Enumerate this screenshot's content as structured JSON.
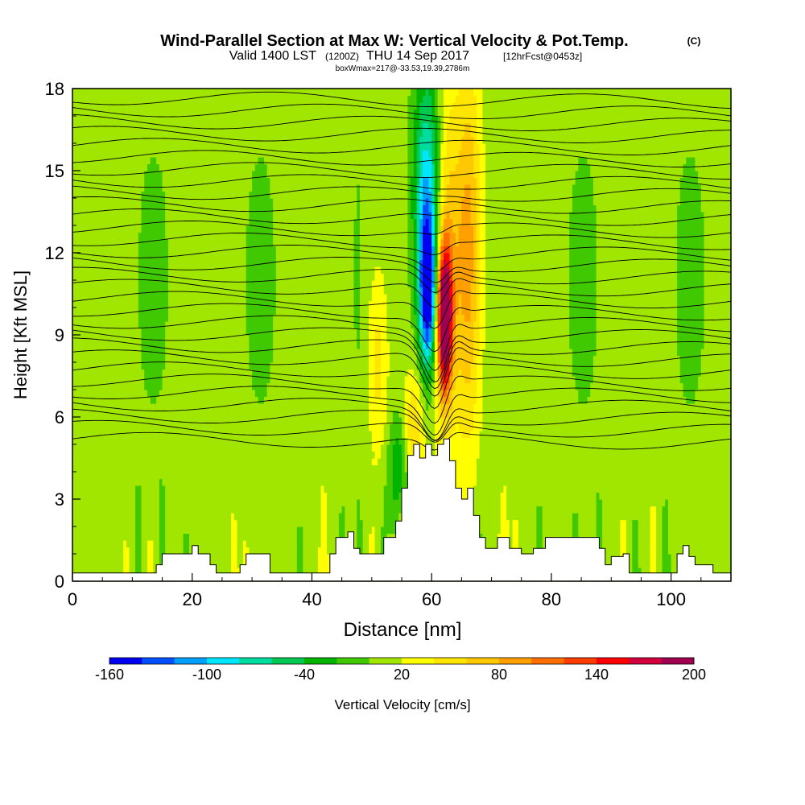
{
  "chart_data": {
    "type": "heatmap",
    "title": "Wind-Parallel Section at Max W: Vertical Velocity & Pot.Temp.",
    "title_tag": "(C)",
    "subtitle_main": "Valid 1400 LST",
    "subtitle_utc": "(1200Z)",
    "subtitle_date": "THU 14 Sep 2017",
    "subtitle_fcst": "[12hrFcst@0453z]",
    "subtitle_box": "boxWmax=217@-33.53,19.39,2786m",
    "xlabel": "Distance [nm]",
    "ylabel": "Height [Kft MSL]",
    "xlim": [
      0,
      110
    ],
    "ylim": [
      0,
      18
    ],
    "x_ticks": [
      0,
      20,
      40,
      60,
      80,
      100
    ],
    "y_ticks": [
      0,
      3,
      6,
      9,
      12,
      15,
      18
    ],
    "colorbar": {
      "label": "Vertical Velocity [cm/s]",
      "tick_labels": [
        -160,
        -100,
        -40,
        20,
        80,
        140,
        200
      ],
      "bins": [
        -160,
        -140,
        -120,
        -100,
        -80,
        -60,
        -40,
        -20,
        0,
        20,
        40,
        60,
        80,
        100,
        120,
        140,
        160,
        180,
        200
      ],
      "colors": [
        "#0000f0",
        "#0050ff",
        "#00a0ff",
        "#00e6ff",
        "#00dca0",
        "#00c850",
        "#00b400",
        "#40c800",
        "#a0e600",
        "#ffff00",
        "#ffe600",
        "#ffc800",
        "#ffa000",
        "#ff6e00",
        "#ff3c00",
        "#ff0000",
        "#d2003c",
        "#a00050"
      ]
    },
    "terrain_profile": [
      [
        0,
        0.3
      ],
      [
        14,
        0.3
      ],
      [
        14,
        0.6
      ],
      [
        15,
        0.6
      ],
      [
        15,
        1
      ],
      [
        20,
        1
      ],
      [
        20,
        1.3
      ],
      [
        21,
        1.3
      ],
      [
        21,
        1
      ],
      [
        23,
        1
      ],
      [
        23,
        0.6
      ],
      [
        24,
        0.6
      ],
      [
        24,
        0.3
      ],
      [
        28,
        0.3
      ],
      [
        28,
        0.6
      ],
      [
        29,
        0.6
      ],
      [
        29,
        1
      ],
      [
        33,
        1
      ],
      [
        33,
        0.3
      ],
      [
        43,
        0.3
      ],
      [
        43,
        1
      ],
      [
        44,
        1
      ],
      [
        44,
        1.6
      ],
      [
        46,
        1.6
      ],
      [
        46,
        1.8
      ],
      [
        47,
        1.8
      ],
      [
        47,
        1.2
      ],
      [
        48,
        1.2
      ],
      [
        48,
        1
      ],
      [
        52,
        1
      ],
      [
        52,
        1.6
      ],
      [
        54,
        1.6
      ],
      [
        54,
        2.2
      ],
      [
        55,
        2.2
      ],
      [
        55,
        3.4
      ],
      [
        56,
        3.4
      ],
      [
        56,
        4.6
      ],
      [
        57,
        4.6
      ],
      [
        57,
        5
      ],
      [
        58,
        5
      ],
      [
        58,
        4.5
      ],
      [
        59,
        4.5
      ],
      [
        59,
        5
      ],
      [
        60,
        5
      ],
      [
        60,
        4.6
      ],
      [
        61,
        4.6
      ],
      [
        61,
        5
      ],
      [
        62,
        5
      ],
      [
        62,
        5.2
      ],
      [
        63,
        5.2
      ],
      [
        63,
        4.4
      ],
      [
        64,
        4.4
      ],
      [
        64,
        3.4
      ],
      [
        65,
        3.4
      ],
      [
        65,
        3
      ],
      [
        66,
        3
      ],
      [
        66,
        3.4
      ],
      [
        67,
        3.4
      ],
      [
        67,
        2.4
      ],
      [
        68,
        2.4
      ],
      [
        68,
        1.6
      ],
      [
        69,
        1.6
      ],
      [
        69,
        1.2
      ],
      [
        71,
        1.2
      ],
      [
        71,
        1.6
      ],
      [
        73,
        1.6
      ],
      [
        73,
        1.2
      ],
      [
        75,
        1.2
      ],
      [
        75,
        1
      ],
      [
        77,
        1
      ],
      [
        77,
        1.2
      ],
      [
        79,
        1.2
      ],
      [
        79,
        1.6
      ],
      [
        82,
        1.6
      ],
      [
        82,
        1.6
      ],
      [
        88,
        1.6
      ],
      [
        88,
        1.2
      ],
      [
        89,
        1.2
      ],
      [
        89,
        0.6
      ],
      [
        90,
        0.6
      ],
      [
        90,
        0.9
      ],
      [
        92,
        0.9
      ],
      [
        92,
        1
      ],
      [
        93,
        1
      ],
      [
        93,
        0.3
      ],
      [
        101,
        0.3
      ],
      [
        101,
        1
      ],
      [
        102,
        1
      ],
      [
        102,
        1.3
      ],
      [
        103,
        1.3
      ],
      [
        103,
        0.9
      ],
      [
        104,
        0.9
      ],
      [
        104,
        0.6
      ],
      [
        107,
        0.6
      ],
      [
        107,
        0.3
      ],
      [
        110,
        0.3
      ]
    ],
    "theta_contours": {
      "count": 30,
      "base_height_kft": 5.2,
      "spacing_kft": 0.43,
      "perturbation_center_nm": 61,
      "note_values_shown": "unlabelled"
    }
  }
}
